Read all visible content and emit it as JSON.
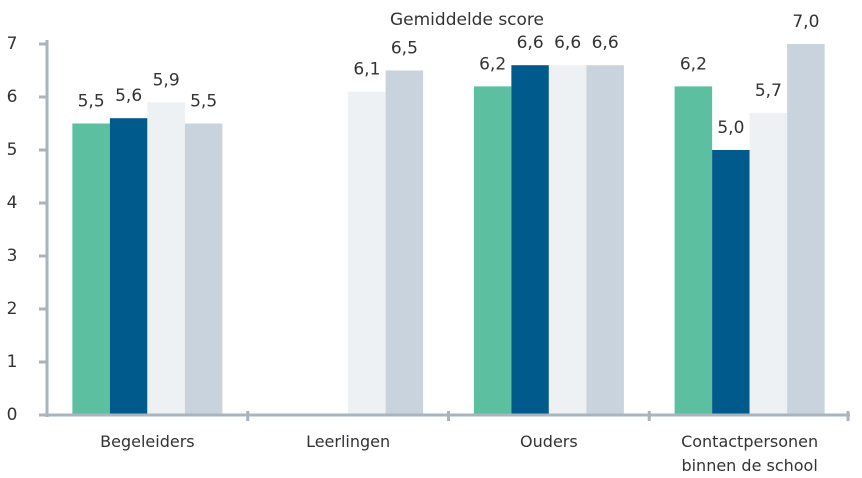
{
  "chart_data": {
    "type": "bar",
    "title": "Gemiddelde score",
    "categories": [
      "Begeleiders",
      "Leerlingen",
      "Ouders",
      "Contactpersonen binnen de school"
    ],
    "series": [
      {
        "color": "#5bbfa0",
        "values": [
          5.5,
          null,
          6.2,
          6.2
        ],
        "value_labels": [
          "5,5",
          null,
          "6,2",
          "6,2"
        ]
      },
      {
        "color": "#005a8b",
        "values": [
          5.6,
          null,
          6.6,
          5.0
        ],
        "value_labels": [
          "5,6",
          null,
          "6,6",
          "5,0"
        ]
      },
      {
        "color": "#edf1f4",
        "values": [
          5.9,
          6.1,
          6.6,
          5.7
        ],
        "value_labels": [
          "5,9",
          "6,1",
          "6,6",
          "5,7"
        ]
      },
      {
        "color": "#c8d3dd",
        "values": [
          5.5,
          6.5,
          6.6,
          7.0
        ],
        "value_labels": [
          "5,5",
          "6,5",
          "6,6",
          "7,0"
        ]
      }
    ],
    "ylim": [
      0,
      7
    ],
    "yticks": [
      0,
      1,
      2,
      3,
      4,
      5,
      6,
      7
    ],
    "grid": false
  }
}
